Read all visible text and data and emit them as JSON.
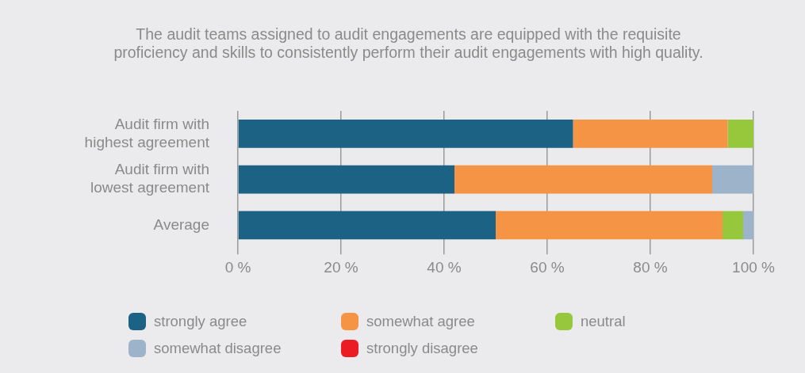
{
  "chart_data": {
    "type": "bar",
    "orientation": "horizontal",
    "stacked": true,
    "title": "The audit teams assigned to audit engagements are equipped with the requisite proficiency and skills to consistently perform their audit engagements with high quality.",
    "categories": [
      "Audit firm with highest agreement",
      "Audit firm with lowest agreement",
      "Average"
    ],
    "series": [
      {
        "name": "strongly agree",
        "color": "#1b6284",
        "values": [
          65,
          42,
          50
        ]
      },
      {
        "name": "somewhat agree",
        "color": "#f69445",
        "values": [
          30,
          50,
          44
        ]
      },
      {
        "name": "neutral",
        "color": "#97c83c",
        "values": [
          5,
          0,
          4
        ]
      },
      {
        "name": "somewhat disagree",
        "color": "#9db3ca",
        "values": [
          0,
          8,
          2
        ]
      },
      {
        "name": "strongly disagree",
        "color": "#ec1c24",
        "values": [
          0,
          0,
          0
        ]
      }
    ],
    "xlim": [
      0,
      100
    ],
    "xticks": [
      {
        "value": 0,
        "label": "0 %"
      },
      {
        "value": 20,
        "label": "20 %"
      },
      {
        "value": 40,
        "label": "40 %"
      },
      {
        "value": 60,
        "label": "60 %"
      },
      {
        "value": 80,
        "label": "80 %"
      },
      {
        "value": 100,
        "label": "100 %"
      }
    ],
    "grid": "x",
    "legend": "bottom"
  }
}
